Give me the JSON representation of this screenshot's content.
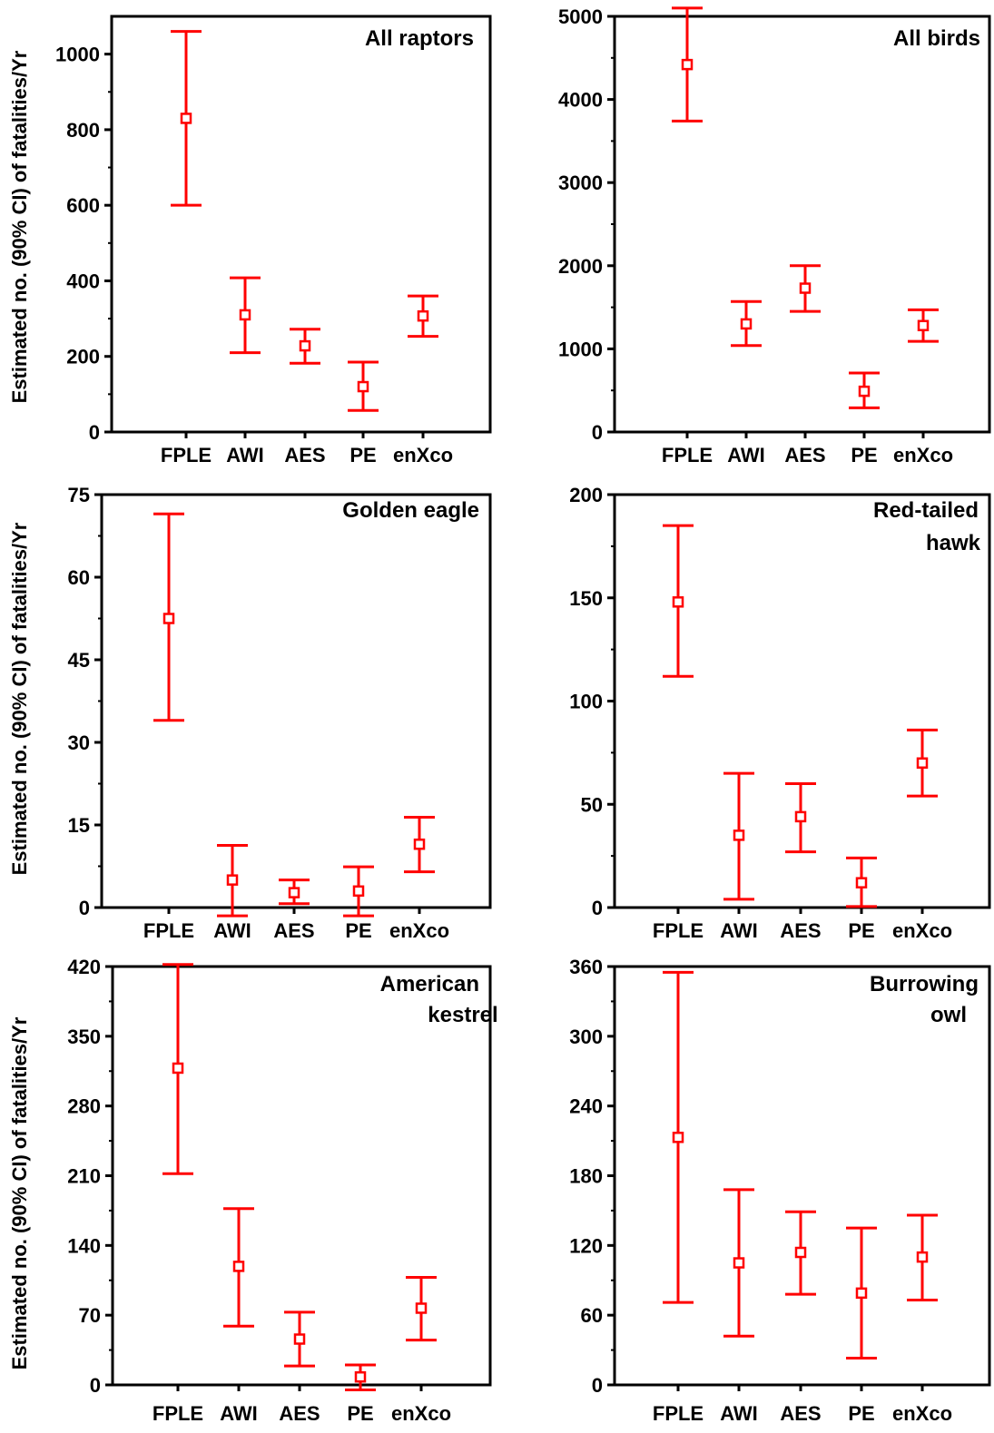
{
  "ylabel": "Estimated no. (90% CI) of fatalities/Yr",
  "colors": {
    "marker": "#ff0000",
    "axis": "#000000",
    "background": "#ffffff"
  },
  "chart_data": [
    {
      "type": "scatter",
      "title": "All raptors",
      "categories": [
        "FPLE",
        "AWI",
        "AES",
        "PE",
        "enXco"
      ],
      "ylim": [
        0,
        1100
      ],
      "yticks": [
        0,
        200,
        400,
        600,
        800,
        1000
      ],
      "series": [
        {
          "estimate": [
            830,
            310,
            228,
            120,
            307
          ],
          "lower": [
            600,
            210,
            182,
            57,
            253
          ],
          "upper": [
            1060,
            408,
            272,
            185,
            360
          ]
        }
      ]
    },
    {
      "type": "scatter",
      "title": "All birds",
      "categories": [
        "FPLE",
        "AWI",
        "AES",
        "PE",
        "enXco"
      ],
      "ylim": [
        0,
        5000
      ],
      "yticks": [
        0,
        1000,
        2000,
        3000,
        4000,
        5000
      ],
      "series": [
        {
          "estimate": [
            4420,
            1300,
            1730,
            490,
            1280
          ],
          "lower": [
            3740,
            1040,
            1450,
            290,
            1090
          ],
          "upper": [
            5100,
            1570,
            2000,
            710,
            1470
          ]
        }
      ]
    },
    {
      "type": "scatter",
      "title": "Golden eagle",
      "categories": [
        "FPLE",
        "AWI",
        "AES",
        "PE",
        "enXco"
      ],
      "ylim": [
        0,
        75
      ],
      "yticks": [
        0,
        15,
        30,
        45,
        60,
        75
      ],
      "series": [
        {
          "estimate": [
            52.5,
            5,
            2.7,
            3,
            11.5
          ],
          "lower": [
            34,
            -1.5,
            0.7,
            -1.5,
            6.5
          ],
          "upper": [
            71.5,
            11.3,
            5,
            7.4,
            16.4
          ]
        }
      ]
    },
    {
      "type": "scatter",
      "title": "Red-tailed hawk",
      "categories": [
        "FPLE",
        "AWI",
        "AES",
        "PE",
        "enXco"
      ],
      "ylim": [
        0,
        200
      ],
      "yticks": [
        0,
        50,
        100,
        150,
        200
      ],
      "series": [
        {
          "estimate": [
            148,
            35,
            44,
            12,
            70
          ],
          "lower": [
            112,
            4,
            27,
            0.5,
            54
          ],
          "upper": [
            185,
            65,
            60,
            24,
            86
          ]
        }
      ]
    },
    {
      "type": "scatter",
      "title": "American kestrel",
      "categories": [
        "FPLE",
        "AWI",
        "AES",
        "PE",
        "enXco"
      ],
      "ylim": [
        0,
        420
      ],
      "yticks": [
        0,
        70,
        140,
        210,
        280,
        350,
        420
      ],
      "series": [
        {
          "estimate": [
            318,
            119,
            46,
            8,
            77
          ],
          "lower": [
            212,
            59,
            19,
            -5,
            45
          ],
          "upper": [
            422,
            177,
            73,
            20,
            108
          ]
        }
      ]
    },
    {
      "type": "scatter",
      "title": "Burrowing owl",
      "categories": [
        "FPLE",
        "AWI",
        "AES",
        "PE",
        "enXco"
      ],
      "ylim": [
        0,
        360
      ],
      "yticks": [
        0,
        60,
        120,
        180,
        240,
        300,
        360
      ],
      "series": [
        {
          "estimate": [
            213,
            105,
            114,
            79,
            110
          ],
          "lower": [
            71,
            42,
            78,
            23,
            73
          ],
          "upper": [
            355,
            168,
            149,
            135,
            146
          ]
        }
      ]
    }
  ]
}
